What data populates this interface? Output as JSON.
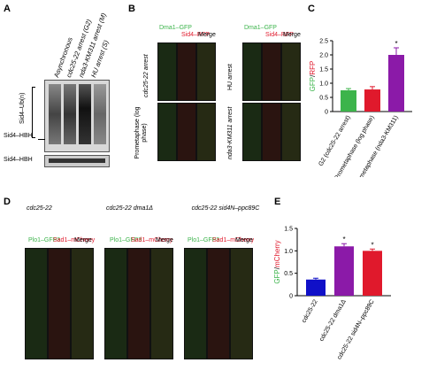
{
  "panels": {
    "A": {
      "label": "A",
      "conditions": [
        "Asynchronous",
        "cdc25-22 arrest (G2)",
        "nda3-KM311 arrest (M)",
        "HU arrest (S)"
      ],
      "band_upper": "Sid4–Ub(n)",
      "band_lower": "Sid4–HBH",
      "blot2_label": "Sid4–HBH"
    },
    "B": {
      "label": "B",
      "cols": [
        "Dma1–GFP",
        "Sid4–RFP",
        "Merge"
      ],
      "rows_left": [
        "cdc25-22 arrest",
        "Prometaphase (log phase)"
      ],
      "rows_right": [
        "HU arrest",
        "nda3-KM311 arrest"
      ]
    },
    "C": {
      "label": "C"
    },
    "D": {
      "label": "D",
      "groups": [
        "cdc25-22",
        "cdc25-22 dma1Δ",
        "cdc25-22 sid4N–ppc89C"
      ],
      "cols": [
        "Plo1–GFP3",
        "Sad1–mCherry",
        "Merge"
      ]
    },
    "E": {
      "label": "E"
    }
  },
  "colors": {
    "green": "#3cb44b",
    "red": "#e0192c",
    "purple": "#8b1aa8",
    "blue": "#1010c8"
  },
  "chart_data": [
    {
      "panel": "C",
      "type": "bar",
      "ylabel_parts": [
        "GFP",
        "/",
        "RFP"
      ],
      "categories": [
        "G2 (cdc25-22 arrest)",
        "Prometaphase (log phase)",
        "Prometaphase (nda3-KM311)"
      ],
      "values": [
        0.75,
        0.78,
        2.0
      ],
      "errors": [
        0.06,
        0.1,
        0.25
      ],
      "significance": [
        "",
        "",
        "*"
      ],
      "colors": [
        "#3cb44b",
        "#e0192c",
        "#8b1aa8"
      ],
      "ylim": [
        0,
        2.5
      ],
      "yticks": [
        0,
        0.5,
        1.0,
        1.5,
        2.0,
        2.5
      ],
      "ytick_labels": [
        "0",
        "0.5",
        "1.0",
        "1.5",
        "2.0",
        "2.5"
      ]
    },
    {
      "panel": "E",
      "type": "bar",
      "ylabel_parts": [
        "GFP",
        "/",
        "mCherry"
      ],
      "categories": [
        "cdc25-22",
        "cdc25-22 dma1Δ",
        "cdc25-22 sid4N–ppc89C"
      ],
      "values": [
        0.36,
        1.1,
        1.0
      ],
      "errors": [
        0.03,
        0.06,
        0.04
      ],
      "significance": [
        "",
        "*",
        "*"
      ],
      "colors": [
        "#1010c8",
        "#8b1aa8",
        "#e0192c"
      ],
      "ylim": [
        0,
        1.5
      ],
      "yticks": [
        0,
        0.5,
        1.0,
        1.5
      ],
      "ytick_labels": [
        "0",
        "0.5",
        "1.0",
        "1.5"
      ]
    }
  ]
}
